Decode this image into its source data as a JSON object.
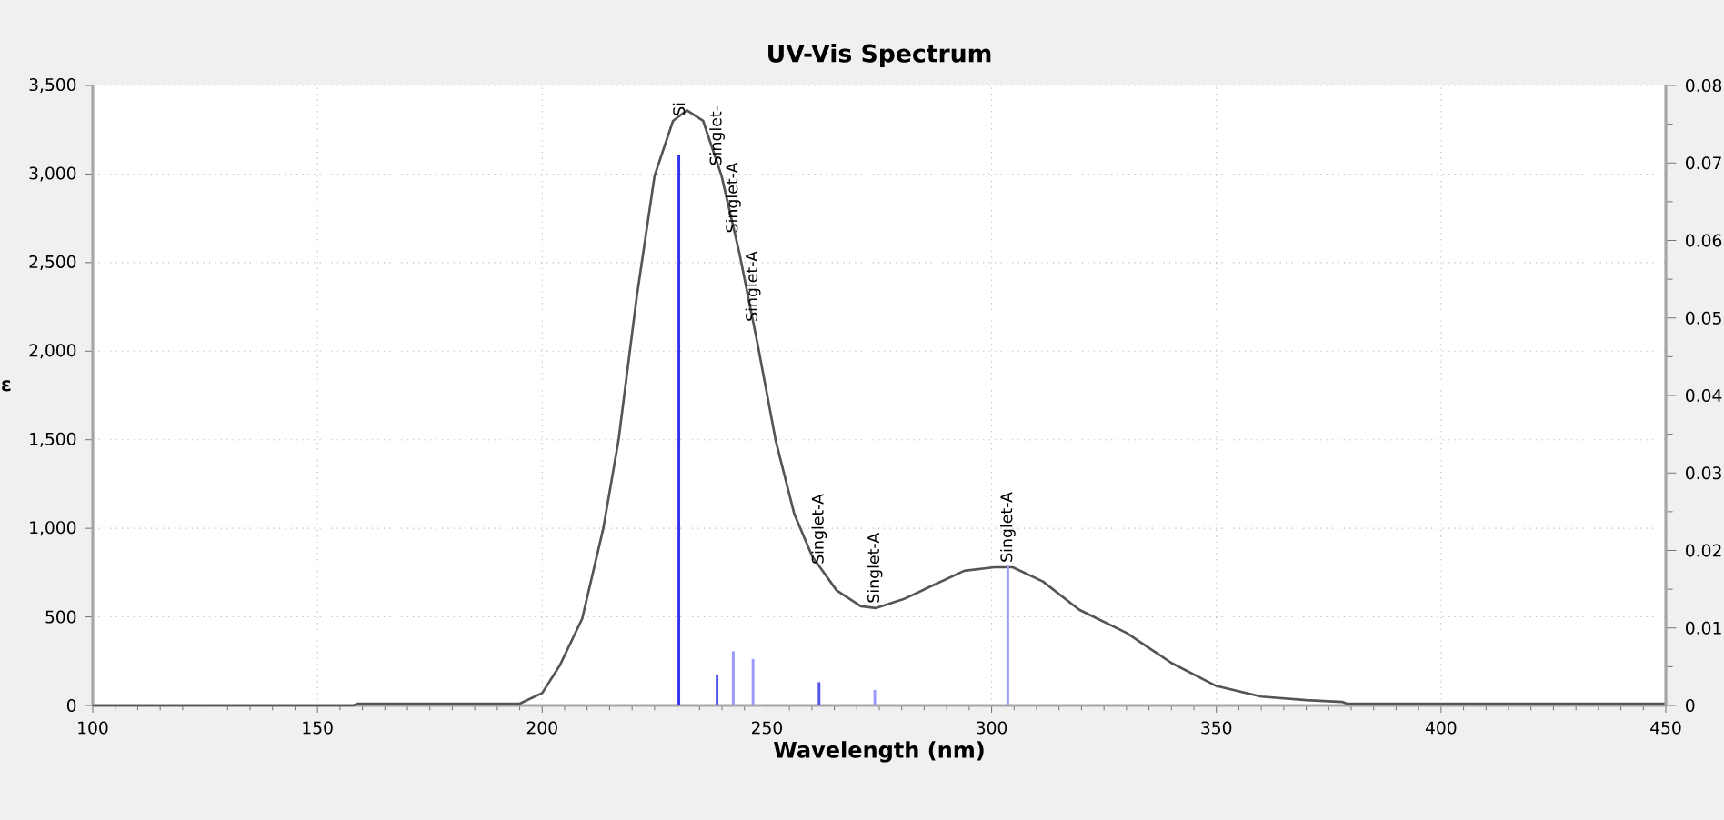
{
  "chart_data": {
    "type": "line",
    "title": "UV-Vis Spectrum",
    "xlabel": "Wavelength (nm)",
    "ylabel": "ε",
    "xlim": [
      100,
      450
    ],
    "xticks": [
      100,
      150,
      200,
      250,
      300,
      350,
      400,
      450
    ],
    "ylim": [
      0,
      3500
    ],
    "yticks": [
      0,
      500,
      {
        "value": 1000,
        "label": "1,000"
      },
      {
        "value": 1500,
        "label": "1,500"
      },
      {
        "value": 2000,
        "label": "2,000"
      },
      {
        "value": 2500,
        "label": "2,500"
      },
      {
        "value": 3000,
        "label": "3,000"
      },
      {
        "value": 3500,
        "label": "3,500"
      }
    ],
    "y2lim": [
      0,
      0.08
    ],
    "y2ticks": [
      0,
      0.01,
      0.02,
      0.03,
      0.04,
      0.05,
      0.06,
      0.07,
      0.08
    ],
    "grid": true,
    "series": [
      {
        "type": "line",
        "color": "#555555",
        "x": [
          100,
          158,
          159,
          195,
          200,
          204,
          208.9,
          213.6,
          217,
          221,
          225,
          229.1,
          232.2,
          235.8,
          239.9,
          243.9,
          248,
          252,
          256.1,
          260.1,
          265.5,
          270.9,
          274.3,
          280.4,
          287.1,
          293.9,
          300.6,
          304.7,
          311.4,
          319.5,
          330,
          340,
          350,
          360,
          370,
          378,
          379,
          450
        ],
        "values": [
          0,
          0,
          10,
          10,
          70,
          230,
          490,
          1000,
          1500,
          2300,
          2990,
          3300,
          3360,
          3300,
          2990,
          2550,
          2030,
          1490,
          1080,
          840,
          650,
          560,
          550,
          600,
          680,
          760,
          780,
          780,
          700,
          540,
          410,
          240,
          110,
          50,
          30,
          20,
          10,
          10
        ]
      },
      {
        "type": "bar",
        "axis": "y2",
        "x": [
          230.4,
          238.9,
          242.5,
          246.9,
          261.6,
          274.0,
          303.6
        ],
        "values": [
          0.071,
          0.004,
          0.007,
          0.006,
          0.003,
          0.002,
          0.018
        ],
        "colors": [
          "#3333ee",
          "#5555ee",
          "#9999ff",
          "#9999ff",
          "#5555ee",
          "#9999ff",
          "#9999ff"
        ]
      }
    ],
    "annotations": [
      {
        "text": "Si",
        "x": 230.4,
        "y": 3310
      },
      {
        "text": "Singlet-",
        "x": 238.9,
        "y": 3030
      },
      {
        "text": "Singlet-A",
        "x": 242.5,
        "y": 2650
      },
      {
        "text": "Singlet-A",
        "x": 246.9,
        "y": 2150
      },
      {
        "text": "Singlet-A",
        "x": 261.6,
        "y": 780
      },
      {
        "text": "Singlet-A",
        "x": 274.0,
        "y": 560
      },
      {
        "text": "Singlet-A",
        "x": 303.6,
        "y": 790
      }
    ]
  }
}
